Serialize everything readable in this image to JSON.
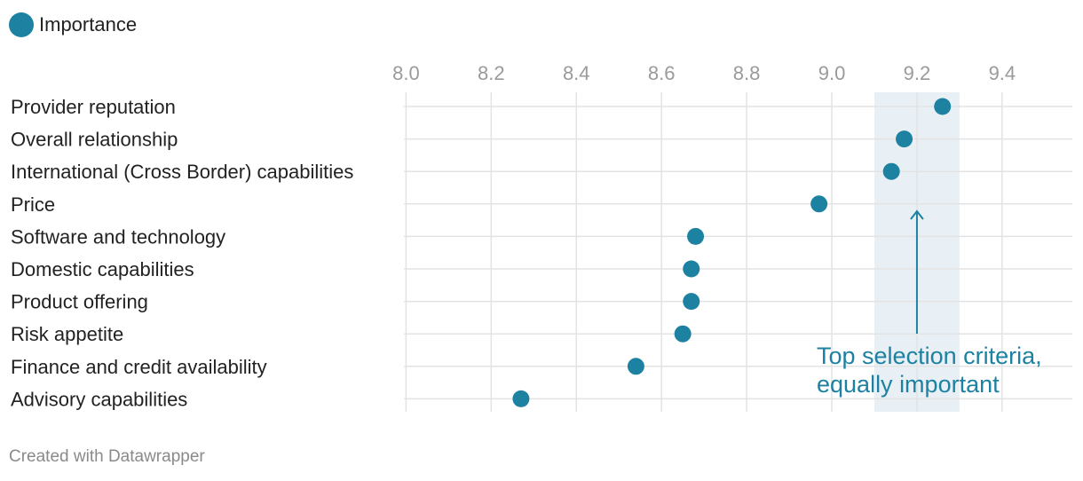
{
  "legend": {
    "label": "Importance"
  },
  "colors": {
    "dot": "#1d81a2",
    "highlight": "#e8f0f5",
    "grid": "#e3e3e3",
    "tick_text": "#9a9a9a",
    "label_text": "#222222",
    "annotation": "#1d81a2"
  },
  "chart_data": {
    "type": "scatter",
    "title": "",
    "xlabel": "",
    "ylabel": "",
    "xlim": [
      7.995,
      9.565
    ],
    "x_ticks": [
      "8.0",
      "8.2",
      "8.4",
      "8.6",
      "8.8",
      "9.0",
      "9.2",
      "9.4"
    ],
    "series": [
      {
        "name": "Importance",
        "points": [
          {
            "label": "Provider reputation",
            "value": 9.26
          },
          {
            "label": "Overall relationship",
            "value": 9.17
          },
          {
            "label": "International (Cross Border) capabilities",
            "value": 9.14
          },
          {
            "label": "Price",
            "value": 8.97
          },
          {
            "label": "Software and technology",
            "value": 8.68
          },
          {
            "label": "Domestic capabilities",
            "value": 8.67
          },
          {
            "label": "Product offering",
            "value": 8.67
          },
          {
            "label": "Risk appetite",
            "value": 8.65
          },
          {
            "label": "Finance and credit availability",
            "value": 8.54
          },
          {
            "label": "Advisory capabilities",
            "value": 8.27
          }
        ]
      }
    ],
    "highlight_range": [
      9.1,
      9.3
    ],
    "annotation": {
      "lines": [
        "Top selection criteria,",
        "equally important"
      ],
      "arrow_x": 9.2
    },
    "grid": true,
    "legend_position": "top-left"
  },
  "footer": {
    "credit": "Created with Datawrapper"
  }
}
